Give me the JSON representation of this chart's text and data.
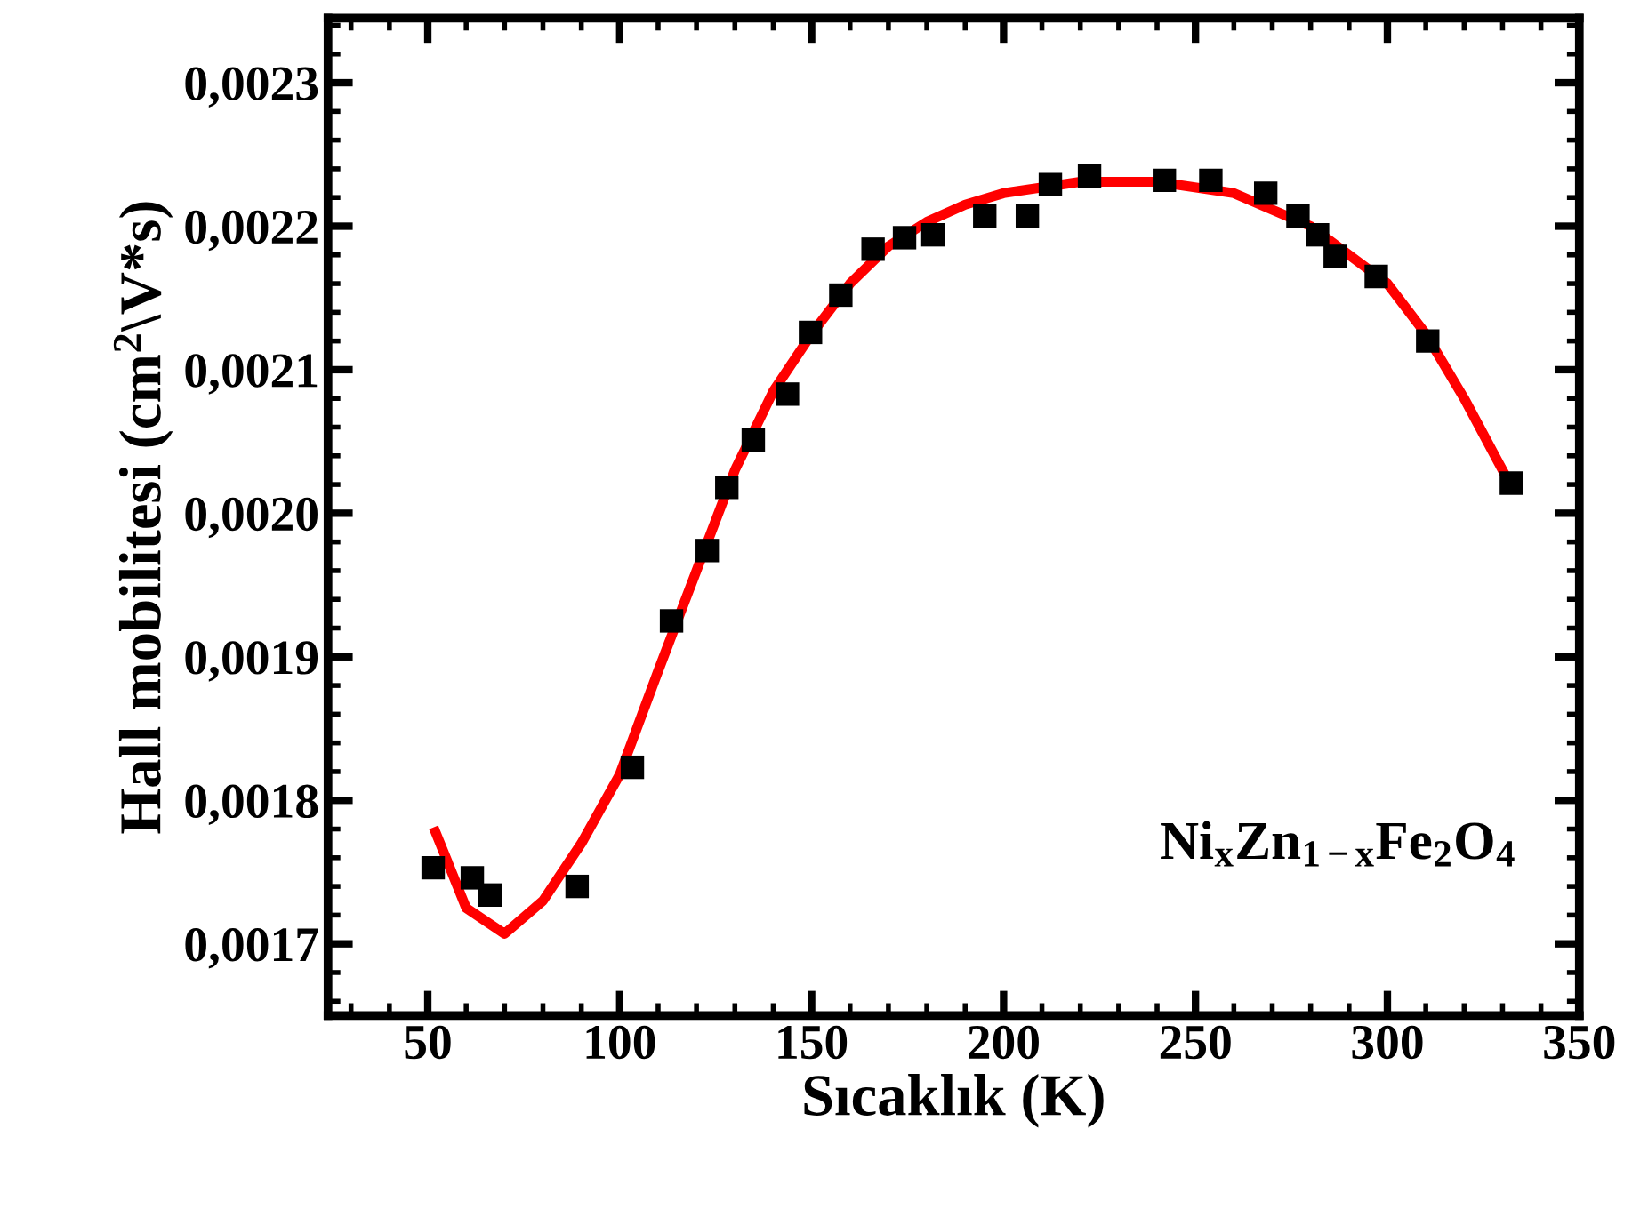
{
  "chart_data": {
    "type": "scatter",
    "xlabel": "Sıcaklık (K)",
    "ylabel": "Hall mobilitesi (cm$^{2}$\\V*s)",
    "annotations": [
      "Ni$_{x}$Zn$_{1−x}$Fe$_{2}$O$_{4}$"
    ],
    "series": [
      {
        "color": "#000000",
        "marker": "square",
        "x": [
          51.4,
          61.6,
          66.2,
          88.9,
          103.3,
          113.5,
          122.8,
          127.9,
          134.8,
          143.7,
          149.7,
          157.6,
          166.0,
          174.2,
          181.6,
          195.1,
          206.2,
          212.2,
          222.4,
          241.9,
          254.0,
          268.3,
          276.7,
          281.8,
          286.4,
          297.1,
          310.5,
          332.3
        ],
        "values": [
          0.001753,
          0.001746,
          0.001734,
          0.00174,
          0.001823,
          0.001925,
          0.001974,
          0.002018,
          0.002051,
          0.002083,
          0.002126,
          0.002152,
          0.002184,
          0.002192,
          0.002194,
          0.002207,
          0.002207,
          0.002229,
          0.002235,
          0.002232,
          0.002232,
          0.002223,
          0.002207,
          0.002194,
          0.002179,
          0.002165,
          0.00212,
          0.002021
        ]
      },
      {
        "type": "line",
        "color": "#ff0000",
        "marker": "none",
        "line_style": "solid",
        "x": [
          52,
          60,
          70,
          80,
          90,
          100,
          110,
          120,
          130,
          140,
          150,
          160,
          170,
          180,
          190,
          200,
          220,
          240,
          260,
          280,
          300,
          310,
          320,
          332
        ],
        "values": [
          0.001778,
          0.001725,
          0.001707,
          0.00173,
          0.00177,
          0.001818,
          0.00189,
          0.00196,
          0.00203,
          0.002085,
          0.002125,
          0.00216,
          0.002186,
          0.002203,
          0.002215,
          0.002223,
          0.002231,
          0.002231,
          0.002223,
          0.0022,
          0.00216,
          0.002125,
          0.00208,
          0.00202
        ]
      }
    ],
    "xlim": [
      24,
      350
    ],
    "ylim": [
      0.00165,
      0.002345
    ],
    "xticks": [
      50,
      100,
      150,
      200,
      250,
      300,
      350
    ],
    "yticks": [
      {
        "value": 0.0017,
        "label": "0,0017"
      },
      {
        "value": 0.0018,
        "label": "0,0018"
      },
      {
        "value": 0.0019,
        "label": "0,0019"
      },
      {
        "value": 0.002,
        "label": "0,0020"
      },
      {
        "value": 0.0021,
        "label": "0,0021"
      },
      {
        "value": 0.0022,
        "label": "0,0022"
      },
      {
        "value": 0.0023,
        "label": "0,0023"
      }
    ],
    "grid": false,
    "legend": false
  }
}
